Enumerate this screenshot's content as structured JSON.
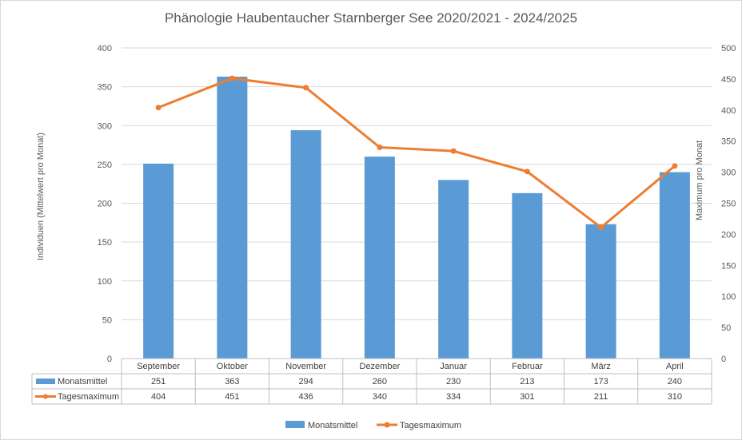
{
  "chart_data": {
    "type": "bar",
    "title": "Phänologie Haubentaucher Starnberger See 2020/2021 - 2024/2025",
    "categories": [
      "September",
      "Oktober",
      "November",
      "Dezember",
      "Januar",
      "Februar",
      "März",
      "April"
    ],
    "series": [
      {
        "name": "Monatsmittel",
        "type": "bar",
        "axis": "left",
        "color": "#5b9bd5",
        "values": [
          251,
          363,
          294,
          260,
          230,
          213,
          173,
          240
        ]
      },
      {
        "name": "Tagesmaximum",
        "type": "line",
        "axis": "right",
        "color": "#ed7d31",
        "values": [
          404,
          451,
          436,
          340,
          334,
          301,
          211,
          310
        ]
      }
    ],
    "ylabel": "Individuen (Mittelwert pro Monat)",
    "y2label": "Maximum pro Monat",
    "ylim": [
      0,
      400
    ],
    "y2lim": [
      0,
      500
    ],
    "yticks": [
      "0",
      "50",
      "100",
      "150",
      "200",
      "250",
      "300",
      "350",
      "400"
    ],
    "y2ticks": [
      "0",
      "50",
      "100",
      "150",
      "200",
      "250",
      "300",
      "350",
      "400",
      "450",
      "500"
    ],
    "grid": true,
    "data_table": true,
    "legend_position": "bottom"
  }
}
